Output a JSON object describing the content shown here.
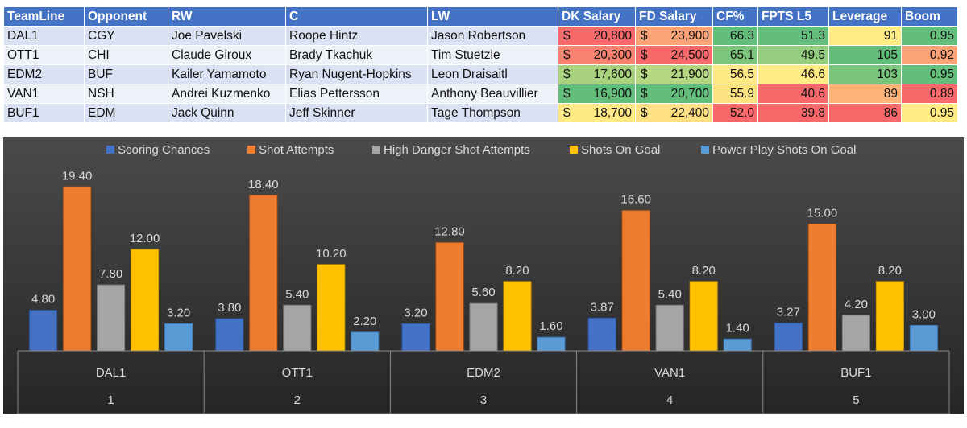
{
  "table": {
    "headers": [
      "TeamLine",
      "Opponent",
      "RW",
      "C",
      "LW",
      "DK Salary",
      "FD Salary",
      "CF%",
      "FPTS L5",
      "Leverage",
      "Boom"
    ],
    "currency_symbol": "$",
    "rows": [
      {
        "team_line": "DAL1",
        "opponent": "CGY",
        "rw": "Joe Pavelski",
        "c": "Roope Hintz",
        "lw": "Jason Robertson",
        "dk_salary": "20,800",
        "fd_salary": "23,900",
        "cf_pct": "66.3",
        "fpts_l5": "51.3",
        "leverage": "91",
        "boom": "0.95"
      },
      {
        "team_line": "OTT1",
        "opponent": "CHI",
        "rw": "Claude Giroux",
        "c": "Brady Tkachuk",
        "lw": "Tim Stuetzle",
        "dk_salary": "20,300",
        "fd_salary": "24,500",
        "cf_pct": "65.1",
        "fpts_l5": "49.5",
        "leverage": "105",
        "boom": "0.92"
      },
      {
        "team_line": "EDM2",
        "opponent": "BUF",
        "rw": "Kailer Yamamoto",
        "c": "Ryan Nugent-Hopkins",
        "lw": "Leon Draisaitl",
        "dk_salary": "17,600",
        "fd_salary": "21,900",
        "cf_pct": "56.5",
        "fpts_l5": "46.6",
        "leverage": "103",
        "boom": "0.95"
      },
      {
        "team_line": "VAN1",
        "opponent": "NSH",
        "rw": "Andrei Kuzmenko",
        "c": "Elias Pettersson",
        "lw": "Anthony Beauvillier",
        "dk_salary": "16,900",
        "fd_salary": "20,700",
        "cf_pct": "55.9",
        "fpts_l5": "40.6",
        "leverage": "89",
        "boom": "0.89"
      },
      {
        "team_line": "BUF1",
        "opponent": "EDM",
        "rw": "Jack Quinn",
        "c": "Jeff Skinner",
        "lw": "Tage Thompson",
        "dk_salary": "18,700",
        "fd_salary": "22,400",
        "cf_pct": "52.0",
        "fpts_l5": "39.8",
        "leverage": "86",
        "boom": "0.95"
      }
    ],
    "cell_colors": {
      "dk_salary": [
        "#f8696b",
        "#f98370",
        "#a9d27f",
        "#63be7b",
        "#ffe984"
      ],
      "fd_salary": [
        "#fba276",
        "#f8696b",
        "#b5d680",
        "#63be7b",
        "#ffe083"
      ],
      "cf_pct": [
        "#63be7b",
        "#7cc67d",
        "#ffe984",
        "#fde281",
        "#f8696b"
      ],
      "fpts_l5": [
        "#63be7b",
        "#94cd7e",
        "#ffeb84",
        "#f8696b",
        "#f8696b"
      ],
      "leverage": [
        "#ffeb84",
        "#63be7b",
        "#7ac57c",
        "#fcb479",
        "#f8696b"
      ],
      "boom": [
        "#63be7b",
        "#fba276",
        "#63be7b",
        "#f8696b",
        "#ffeb84"
      ]
    }
  },
  "chart_data": {
    "type": "bar",
    "categories": [
      "DAL1",
      "OTT1",
      "EDM2",
      "VAN1",
      "BUF1"
    ],
    "category_index_labels": [
      "1",
      "2",
      "3",
      "4",
      "5"
    ],
    "series": [
      {
        "name": "Scoring Chances",
        "values": [
          4.8,
          3.8,
          3.2,
          3.87,
          3.27
        ],
        "labels": [
          "4.80",
          "3.80",
          "3.20",
          "3.87",
          "3.27"
        ]
      },
      {
        "name": "Shot Attempts",
        "values": [
          19.4,
          18.4,
          12.8,
          16.6,
          15.0
        ],
        "labels": [
          "19.40",
          "18.40",
          "12.80",
          "16.60",
          "15.00"
        ]
      },
      {
        "name": "High Danger Shot Attempts",
        "values": [
          7.8,
          5.4,
          5.6,
          5.4,
          4.2
        ],
        "labels": [
          "7.80",
          "5.40",
          "5.60",
          "5.40",
          "4.20"
        ]
      },
      {
        "name": "Shots On Goal",
        "values": [
          12.0,
          10.2,
          8.2,
          8.2,
          8.2
        ],
        "labels": [
          "12.00",
          "10.20",
          "8.20",
          "8.20",
          "8.20"
        ]
      },
      {
        "name": "Power Play Shots On Goal",
        "values": [
          3.2,
          2.2,
          1.6,
          1.4,
          3.0
        ],
        "labels": [
          "3.20",
          "2.20",
          "1.60",
          "1.40",
          "3.00"
        ]
      }
    ],
    "colors": {
      "series": [
        "#4472c4",
        "#ed7d31",
        "#a5a5a5",
        "#ffc000",
        "#5b9bd5"
      ],
      "series_dark": [
        "#2d59a8",
        "#c55a11",
        "#7f7f7f",
        "#d49e00",
        "#3b7dbd"
      ],
      "background_top": "#4b4b4b",
      "background_bottom": "#262626",
      "text": "#d9d9d9"
    },
    "legend_position": "top",
    "ylim": [
      0,
      20
    ],
    "grid": false
  }
}
